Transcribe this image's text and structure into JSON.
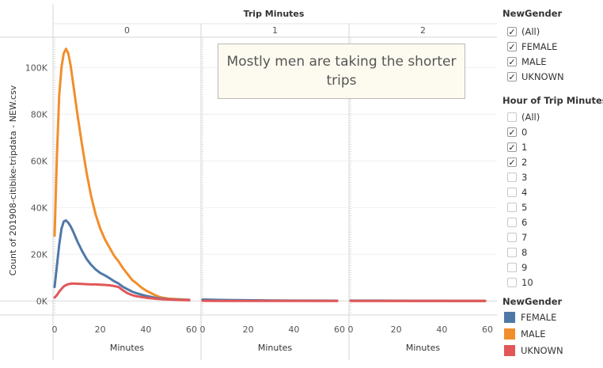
{
  "chart_data": {
    "type": "line",
    "title": "Trip Minutes",
    "column_field": "Trip Minutes",
    "panes": [
      "0",
      "1",
      "2"
    ],
    "xlabel": "Minutes",
    "ylabel": "Count of 201908-citibike-tripdata - NEW.csv",
    "xlim": [
      0,
      60
    ],
    "x_ticks": [
      "0",
      "20",
      "40",
      "60"
    ],
    "ylim": [
      -6000,
      113000
    ],
    "y_ticks": [
      {
        "value": 0,
        "label": "0K"
      },
      {
        "value": 20000,
        "label": "20K"
      },
      {
        "value": 40000,
        "label": "40K"
      },
      {
        "value": 60000,
        "label": "60K"
      },
      {
        "value": 80000,
        "label": "80K"
      },
      {
        "value": 100000,
        "label": "100K"
      }
    ],
    "grid": "horizontal",
    "annotation": "Mostly men are taking the shorter trips",
    "series": [
      {
        "name": "MALE",
        "color": "#f28e2b",
        "panes": [
          {
            "x": [
              0,
              1,
              2,
              3,
              4,
              5,
              6,
              7,
              8,
              10,
              12,
              14,
              16,
              18,
              20,
              22,
              24,
              26,
              28,
              30,
              32,
              34,
              36,
              38,
              40,
              42,
              44,
              46,
              48,
              50,
              55,
              59
            ],
            "y": [
              28000,
              62000,
              88000,
              100000,
              106000,
              108000,
              106000,
              101000,
              94000,
              80000,
              67000,
              55000,
              45000,
              37000,
              31000,
              26500,
              23000,
              19500,
              17000,
              14000,
              11500,
              9000,
              7500,
              5800,
              4500,
              3500,
              2500,
              1700,
              1300,
              1000,
              700,
              500
            ]
          },
          {
            "x": [
              0,
              10,
              20,
              30,
              40,
              50,
              59
            ],
            "y": [
              500,
              300,
              200,
              150,
              100,
              80,
              60
            ]
          },
          {
            "x": [
              0,
              10,
              20,
              30,
              40,
              50,
              59
            ],
            "y": [
              80,
              60,
              50,
              40,
              30,
              30,
              20
            ]
          }
        ]
      },
      {
        "name": "FEMALE",
        "color": "#4e79a7",
        "panes": [
          {
            "x": [
              0,
              1,
              2,
              3,
              4,
              5,
              6,
              7,
              8,
              10,
              12,
              14,
              16,
              18,
              20,
              22,
              24,
              26,
              28,
              30,
              32,
              34,
              36,
              38,
              40,
              42,
              44,
              46,
              48,
              50,
              55,
              59
            ],
            "y": [
              6000,
              15000,
              24000,
              31000,
              34000,
              34500,
              33500,
              32000,
              30000,
              25500,
              21500,
              18000,
              15500,
              13500,
              12000,
              11000,
              9800,
              8500,
              7500,
              6000,
              5000,
              4000,
              3300,
              2700,
              2200,
              1800,
              1400,
              1100,
              900,
              700,
              500,
              400
            ]
          },
          {
            "x": [
              0,
              10,
              20,
              30,
              40,
              50,
              59
            ],
            "y": [
              600,
              400,
              300,
              200,
              150,
              120,
              100
            ]
          },
          {
            "x": [
              0,
              10,
              20,
              30,
              40,
              50,
              59
            ],
            "y": [
              150,
              120,
              100,
              80,
              60,
              50,
              40
            ]
          }
        ]
      },
      {
        "name": "UKNOWN",
        "color": "#e15759",
        "panes": [
          {
            "x": [
              0,
              1,
              2,
              3,
              4,
              5,
              6,
              7,
              8,
              10,
              12,
              14,
              16,
              18,
              20,
              22,
              24,
              26,
              28,
              30,
              32,
              34,
              36,
              38,
              40,
              42,
              44,
              46,
              48,
              50,
              55,
              59
            ],
            "y": [
              1500,
              2500,
              4000,
              5200,
              6200,
              6800,
              7200,
              7400,
              7500,
              7400,
              7300,
              7200,
              7100,
              7100,
              7000,
              6900,
              6700,
              6400,
              6000,
              4500,
              3300,
              2500,
              2000,
              1700,
              1400,
              1200,
              1000,
              800,
              700,
              600,
              400,
              300
            ]
          },
          {
            "x": [
              0,
              10,
              20,
              30,
              40,
              50,
              59
            ],
            "y": [
              60,
              40,
              30,
              20,
              20,
              10,
              10
            ]
          },
          {
            "x": [
              0,
              10,
              20,
              30,
              40,
              50,
              59
            ],
            "y": [
              10,
              10,
              10,
              5,
              5,
              5,
              5
            ]
          }
        ]
      }
    ]
  },
  "filters": {
    "gender": {
      "title": "NewGender",
      "items": [
        {
          "label": "(All)",
          "checked": true
        },
        {
          "label": "FEMALE",
          "checked": true
        },
        {
          "label": "MALE",
          "checked": true
        },
        {
          "label": "UKNOWN",
          "checked": true
        }
      ]
    },
    "hour": {
      "title": "Hour of Trip Minutes",
      "items": [
        {
          "label": "(All)",
          "checked": false
        },
        {
          "label": "0",
          "checked": true
        },
        {
          "label": "1",
          "checked": true
        },
        {
          "label": "2",
          "checked": true
        },
        {
          "label": "3",
          "checked": false
        },
        {
          "label": "4",
          "checked": false
        },
        {
          "label": "5",
          "checked": false
        },
        {
          "label": "6",
          "checked": false
        },
        {
          "label": "7",
          "checked": false
        },
        {
          "label": "8",
          "checked": false
        },
        {
          "label": "9",
          "checked": false
        },
        {
          "label": "10",
          "checked": false
        }
      ]
    }
  },
  "legend": {
    "title": "NewGender",
    "items": [
      {
        "label": "FEMALE",
        "color": "#4e79a7"
      },
      {
        "label": "MALE",
        "color": "#f28e2b"
      },
      {
        "label": "UKNOWN",
        "color": "#e15759"
      }
    ]
  }
}
